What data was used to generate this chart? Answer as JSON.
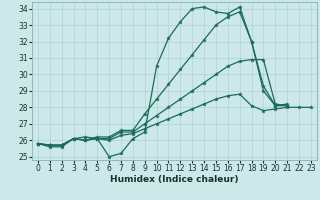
{
  "title": "",
  "xlabel": "Humidex (Indice chaleur)",
  "xlim": [
    -0.5,
    23.5
  ],
  "ylim": [
    24.8,
    34.4
  ],
  "yticks": [
    25,
    26,
    27,
    28,
    29,
    30,
    31,
    32,
    33,
    34
  ],
  "xticks": [
    0,
    1,
    2,
    3,
    4,
    5,
    6,
    7,
    8,
    9,
    10,
    11,
    12,
    13,
    14,
    15,
    16,
    17,
    18,
    19,
    20,
    21,
    22,
    23
  ],
  "background_color": "#cce8e8",
  "grid_color": "#aacccc",
  "line_color": "#1a6b5a",
  "lines": [
    [
      25.8,
      25.6,
      25.6,
      26.1,
      26.2,
      26.1,
      25.0,
      25.2,
      26.1,
      26.5,
      30.5,
      32.2,
      33.2,
      34.0,
      34.1,
      33.8,
      33.7,
      34.1,
      32.0,
      29.3,
      28.1,
      28.1,
      null,
      null
    ],
    [
      25.8,
      25.7,
      25.7,
      26.1,
      26.0,
      26.2,
      26.2,
      26.6,
      26.6,
      27.6,
      28.5,
      29.4,
      30.3,
      31.2,
      32.1,
      33.0,
      33.5,
      33.8,
      32.0,
      29.0,
      28.1,
      28.2,
      null,
      null
    ],
    [
      25.8,
      25.7,
      25.7,
      26.1,
      26.0,
      26.1,
      26.1,
      26.5,
      26.5,
      27.0,
      27.5,
      28.0,
      28.5,
      29.0,
      29.5,
      30.0,
      30.5,
      30.8,
      30.9,
      30.9,
      28.2,
      28.1,
      null,
      null
    ],
    [
      25.8,
      25.7,
      25.7,
      26.1,
      26.0,
      26.1,
      26.0,
      26.3,
      26.4,
      26.7,
      27.0,
      27.3,
      27.6,
      27.9,
      28.2,
      28.5,
      28.7,
      28.8,
      28.1,
      27.8,
      27.9,
      28.0,
      28.0,
      28.0
    ]
  ],
  "tick_fontsize": 5.5,
  "xlabel_fontsize": 6.5,
  "label_color": "#1a3030",
  "spine_color": "#88bbbb",
  "marker_size": 2.8,
  "line_width": 0.9
}
